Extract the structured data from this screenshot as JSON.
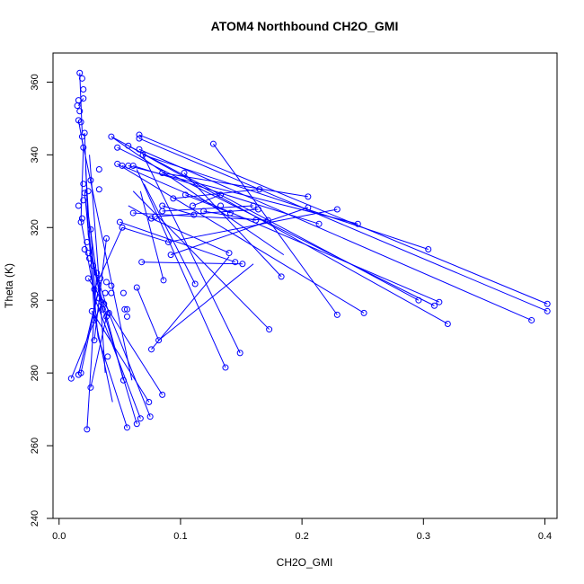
{
  "chart_data": {
    "type": "line",
    "title": "ATOM4 Northbound CH2O_GMI",
    "xlabel": "CH2O_GMI",
    "ylabel": "Theta (K)",
    "xlim": [
      -0.005,
      0.41
    ],
    "ylim": [
      240,
      368
    ],
    "xticks": [
      0.0,
      0.1,
      0.2,
      0.3,
      0.4
    ],
    "xtick_labels": [
      "0.0",
      "0.1",
      "0.2",
      "0.3",
      "0.4"
    ],
    "yticks": [
      240,
      260,
      280,
      300,
      320,
      340,
      360
    ],
    "ytick_labels": [
      "240",
      "260",
      "280",
      "300",
      "320",
      "340",
      "360"
    ],
    "grid": false,
    "colors": {
      "series": "#0000ff",
      "axis": "#000000"
    },
    "series": [
      {
        "marker": "open-circle",
        "points": [
          [
            0.017,
            362.5
          ],
          [
            0.019,
            361.0
          ],
          [
            0.02,
            358.0
          ],
          [
            0.02,
            355.5
          ],
          [
            0.016,
            355.0
          ],
          [
            0.015,
            353.5
          ],
          [
            0.017,
            352.0
          ],
          [
            0.016,
            349.5
          ],
          [
            0.018,
            349.0
          ],
          [
            0.021,
            346.0
          ],
          [
            0.019,
            345.0
          ],
          [
            0.02,
            342.0
          ],
          [
            0.043,
            345.0
          ],
          [
            0.066,
            345.5
          ],
          [
            0.066,
            344.5
          ],
          [
            0.048,
            342.0
          ],
          [
            0.057,
            342.5
          ],
          [
            0.066,
            341.5
          ],
          [
            0.127,
            343.0
          ],
          [
            0.069,
            340.0
          ],
          [
            0.048,
            337.5
          ],
          [
            0.052,
            337.0
          ],
          [
            0.057,
            337.0
          ],
          [
            0.061,
            337.0
          ],
          [
            0.033,
            336.0
          ],
          [
            0.085,
            335.0
          ],
          [
            0.103,
            335.0
          ],
          [
            0.02,
            332.0
          ],
          [
            0.026,
            333.0
          ],
          [
            0.024,
            330.0
          ],
          [
            0.033,
            330.5
          ],
          [
            0.165,
            330.5
          ],
          [
            0.021,
            329.5
          ],
          [
            0.02,
            327.5
          ],
          [
            0.104,
            329.0
          ],
          [
            0.094,
            328.0
          ],
          [
            0.133,
            329.0
          ],
          [
            0.205,
            328.5
          ],
          [
            0.016,
            326.0
          ],
          [
            0.085,
            326.0
          ],
          [
            0.11,
            326.0
          ],
          [
            0.133,
            326.0
          ],
          [
            0.16,
            326.0
          ],
          [
            0.205,
            325.5
          ],
          [
            0.229,
            325.0
          ],
          [
            0.061,
            324.0
          ],
          [
            0.085,
            324.5
          ],
          [
            0.119,
            324.5
          ],
          [
            0.141,
            324.0
          ],
          [
            0.164,
            325.0
          ],
          [
            0.111,
            323.5
          ],
          [
            0.079,
            323.0
          ],
          [
            0.076,
            322.5
          ],
          [
            0.019,
            322.5
          ],
          [
            0.05,
            321.5
          ],
          [
            0.162,
            322.0
          ],
          [
            0.172,
            322.0
          ],
          [
            0.214,
            321.0
          ],
          [
            0.246,
            321.0
          ],
          [
            0.018,
            321.5
          ],
          [
            0.052,
            320.0
          ],
          [
            0.026,
            319.5
          ],
          [
            0.023,
            316.0
          ],
          [
            0.021,
            314.0
          ],
          [
            0.039,
            317.0
          ],
          [
            0.024,
            313.0
          ],
          [
            0.304,
            314.0
          ],
          [
            0.09,
            316.0
          ],
          [
            0.025,
            311.5
          ],
          [
            0.092,
            312.5
          ],
          [
            0.14,
            313.0
          ],
          [
            0.145,
            310.5
          ],
          [
            0.151,
            310.0
          ],
          [
            0.068,
            310.5
          ],
          [
            0.028,
            309.5
          ],
          [
            0.031,
            307.5
          ],
          [
            0.024,
            306.0
          ],
          [
            0.034,
            306.0
          ],
          [
            0.183,
            306.5
          ],
          [
            0.039,
            305.0
          ],
          [
            0.043,
            304.0
          ],
          [
            0.086,
            305.5
          ],
          [
            0.112,
            304.5
          ],
          [
            0.064,
            303.5
          ],
          [
            0.029,
            303.0
          ],
          [
            0.038,
            302.0
          ],
          [
            0.043,
            302.0
          ],
          [
            0.053,
            302.0
          ],
          [
            0.033,
            300.5
          ],
          [
            0.035,
            299.5
          ],
          [
            0.037,
            299.0
          ],
          [
            0.296,
            300.0
          ],
          [
            0.313,
            299.5
          ],
          [
            0.309,
            298.5
          ],
          [
            0.402,
            299.0
          ],
          [
            0.402,
            297.0
          ],
          [
            0.054,
            297.5
          ],
          [
            0.056,
            297.5
          ],
          [
            0.036,
            297.5
          ],
          [
            0.027,
            297.0
          ],
          [
            0.041,
            296.5
          ],
          [
            0.039,
            295.5
          ],
          [
            0.056,
            295.5
          ],
          [
            0.229,
            296.0
          ],
          [
            0.251,
            296.5
          ],
          [
            0.029,
            294.5
          ],
          [
            0.389,
            294.5
          ],
          [
            0.32,
            293.5
          ],
          [
            0.173,
            292.0
          ],
          [
            0.029,
            289.0
          ],
          [
            0.082,
            289.0
          ],
          [
            0.076,
            286.5
          ],
          [
            0.149,
            285.5
          ],
          [
            0.04,
            284.5
          ],
          [
            0.137,
            281.5
          ],
          [
            0.018,
            280.0
          ],
          [
            0.016,
            279.5
          ],
          [
            0.01,
            278.5
          ],
          [
            0.053,
            278.0
          ],
          [
            0.026,
            276.0
          ],
          [
            0.085,
            274.0
          ],
          [
            0.074,
            272.0
          ],
          [
            0.075,
            268.0
          ],
          [
            0.067,
            267.5
          ],
          [
            0.064,
            266.0
          ],
          [
            0.023,
            264.5
          ],
          [
            0.056,
            265.0
          ]
        ],
        "segments": [
          [
            [
              0.017,
              362.5
            ],
            [
              0.019,
              346.0
            ]
          ],
          [
            [
              0.02,
              355.5
            ],
            [
              0.016,
              353.5
            ]
          ],
          [
            [
              0.016,
              349.5
            ],
            [
              0.02,
              342.0
            ]
          ],
          [
            [
              0.02,
              342.0
            ],
            [
              0.018,
              322.0
            ]
          ],
          [
            [
              0.018,
              322.0
            ],
            [
              0.03,
              300.0
            ]
          ],
          [
            [
              0.021,
              346.0
            ],
            [
              0.024,
              318.0
            ]
          ],
          [
            [
              0.024,
              318.0
            ],
            [
              0.036,
              297.0
            ]
          ],
          [
            [
              0.025,
              340.0
            ],
            [
              0.033,
              305.0
            ]
          ],
          [
            [
              0.033,
              305.0
            ],
            [
              0.038,
              280.0
            ]
          ],
          [
            [
              0.019,
              344.0
            ],
            [
              0.04,
              310.0
            ]
          ],
          [
            [
              0.04,
              310.0
            ],
            [
              0.06,
              278.0
            ]
          ],
          [
            [
              0.022,
              336.0
            ],
            [
              0.029,
              296.0
            ]
          ],
          [
            [
              0.029,
              296.0
            ],
            [
              0.044,
              272.0
            ]
          ],
          [
            [
              0.021,
              330.0
            ],
            [
              0.032,
              290.0
            ]
          ],
          [
            [
              0.032,
              290.0
            ],
            [
              0.056,
              265.0
            ]
          ],
          [
            [
              0.023,
              326.0
            ],
            [
              0.034,
              300.0
            ]
          ],
          [
            [
              0.034,
              300.0
            ],
            [
              0.064,
              266.0
            ]
          ],
          [
            [
              0.026,
              320.0
            ],
            [
              0.03,
              300.0
            ]
          ],
          [
            [
              0.03,
              300.0
            ],
            [
              0.067,
              267.5
            ]
          ],
          [
            [
              0.025,
              313.0
            ],
            [
              0.041,
              296.5
            ]
          ],
          [
            [
              0.041,
              296.5
            ],
            [
              0.075,
              268.0
            ]
          ],
          [
            [
              0.028,
              309.5
            ],
            [
              0.053,
              278.0
            ]
          ],
          [
            [
              0.024,
              306.0
            ],
            [
              0.085,
              274.0
            ]
          ],
          [
            [
              0.027,
              297.0
            ],
            [
              0.074,
              272.0
            ]
          ],
          [
            [
              0.031,
              307.5
            ],
            [
              0.023,
              264.5
            ]
          ],
          [
            [
              0.026,
              276.0
            ],
            [
              0.04,
              297.0
            ]
          ],
          [
            [
              0.01,
              278.5
            ],
            [
              0.036,
              300.0
            ]
          ],
          [
            [
              0.016,
              279.5
            ],
            [
              0.034,
              305.0
            ]
          ],
          [
            [
              0.018,
              280.0
            ],
            [
              0.032,
              302.0
            ]
          ],
          [
            [
              0.029,
              289.0
            ],
            [
              0.039,
              317.0
            ]
          ],
          [
            [
              0.029,
              303.0
            ],
            [
              0.052,
              320.0
            ]
          ],
          [
            [
              0.043,
              345.0
            ],
            [
              0.185,
              312.5
            ]
          ],
          [
            [
              0.043,
              345.0
            ],
            [
              0.296,
              300.0
            ]
          ],
          [
            [
              0.066,
              345.5
            ],
            [
              0.402,
              299.0
            ]
          ],
          [
            [
              0.066,
              344.5
            ],
            [
              0.402,
              297.0
            ]
          ],
          [
            [
              0.048,
              342.0
            ],
            [
              0.309,
              298.5
            ]
          ],
          [
            [
              0.057,
              342.5
            ],
            [
              0.32,
              293.5
            ]
          ],
          [
            [
              0.066,
              341.5
            ],
            [
              0.389,
              294.5
            ]
          ],
          [
            [
              0.069,
              340.0
            ],
            [
              0.304,
              314.0
            ]
          ],
          [
            [
              0.127,
              343.0
            ],
            [
              0.229,
              296.0
            ]
          ],
          [
            [
              0.048,
              337.5
            ],
            [
              0.251,
              296.5
            ]
          ],
          [
            [
              0.052,
              337.0
            ],
            [
              0.313,
              299.5
            ]
          ],
          [
            [
              0.057,
              337.0
            ],
            [
              0.246,
              321.0
            ]
          ],
          [
            [
              0.061,
              337.0
            ],
            [
              0.214,
              321.0
            ]
          ],
          [
            [
              0.085,
              335.0
            ],
            [
              0.205,
              328.5
            ]
          ],
          [
            [
              0.103,
              335.0
            ],
            [
              0.183,
              306.5
            ]
          ],
          [
            [
              0.061,
              330.0
            ],
            [
              0.173,
              292.0
            ]
          ],
          [
            [
              0.069,
              340.0
            ],
            [
              0.149,
              285.5
            ]
          ],
          [
            [
              0.064,
              336.0
            ],
            [
              0.137,
              281.5
            ]
          ],
          [
            [
              0.07,
              332.0
            ],
            [
              0.112,
              304.5
            ]
          ],
          [
            [
              0.067,
              330.0
            ],
            [
              0.086,
              305.5
            ]
          ],
          [
            [
              0.061,
              324.0
            ],
            [
              0.172,
              322.0
            ]
          ],
          [
            [
              0.079,
              323.0
            ],
            [
              0.164,
              325.0
            ]
          ],
          [
            [
              0.085,
              324.5
            ],
            [
              0.16,
              326.0
            ]
          ],
          [
            [
              0.09,
              316.0
            ],
            [
              0.229,
              325.0
            ]
          ],
          [
            [
              0.092,
              312.5
            ],
            [
              0.205,
              325.5
            ]
          ],
          [
            [
              0.094,
              328.0
            ],
            [
              0.165,
              330.5
            ]
          ],
          [
            [
              0.104,
              329.0
            ],
            [
              0.141,
              324.0
            ]
          ],
          [
            [
              0.11,
              326.0
            ],
            [
              0.133,
              329.0
            ]
          ],
          [
            [
              0.119,
              324.5
            ],
            [
              0.162,
              322.0
            ]
          ],
          [
            [
              0.076,
              322.5
            ],
            [
              0.14,
              313.0
            ]
          ],
          [
            [
              0.05,
              321.5
            ],
            [
              0.145,
              310.5
            ]
          ],
          [
            [
              0.068,
              310.5
            ],
            [
              0.151,
              310.0
            ]
          ],
          [
            [
              0.064,
              303.5
            ],
            [
              0.082,
              289.0
            ]
          ],
          [
            [
              0.082,
              289.0
            ],
            [
              0.16,
              310.0
            ]
          ],
          [
            [
              0.076,
              286.5
            ],
            [
              0.14,
              312.0
            ]
          ],
          [
            [
              0.052,
              320.0
            ],
            [
              0.09,
              316.0
            ]
          ],
          [
            [
              0.111,
              323.5
            ],
            [
              0.085,
              326.0
            ]
          ],
          [
            [
              0.057,
              326.0
            ],
            [
              0.076,
              322.5
            ]
          ]
        ]
      }
    ]
  }
}
